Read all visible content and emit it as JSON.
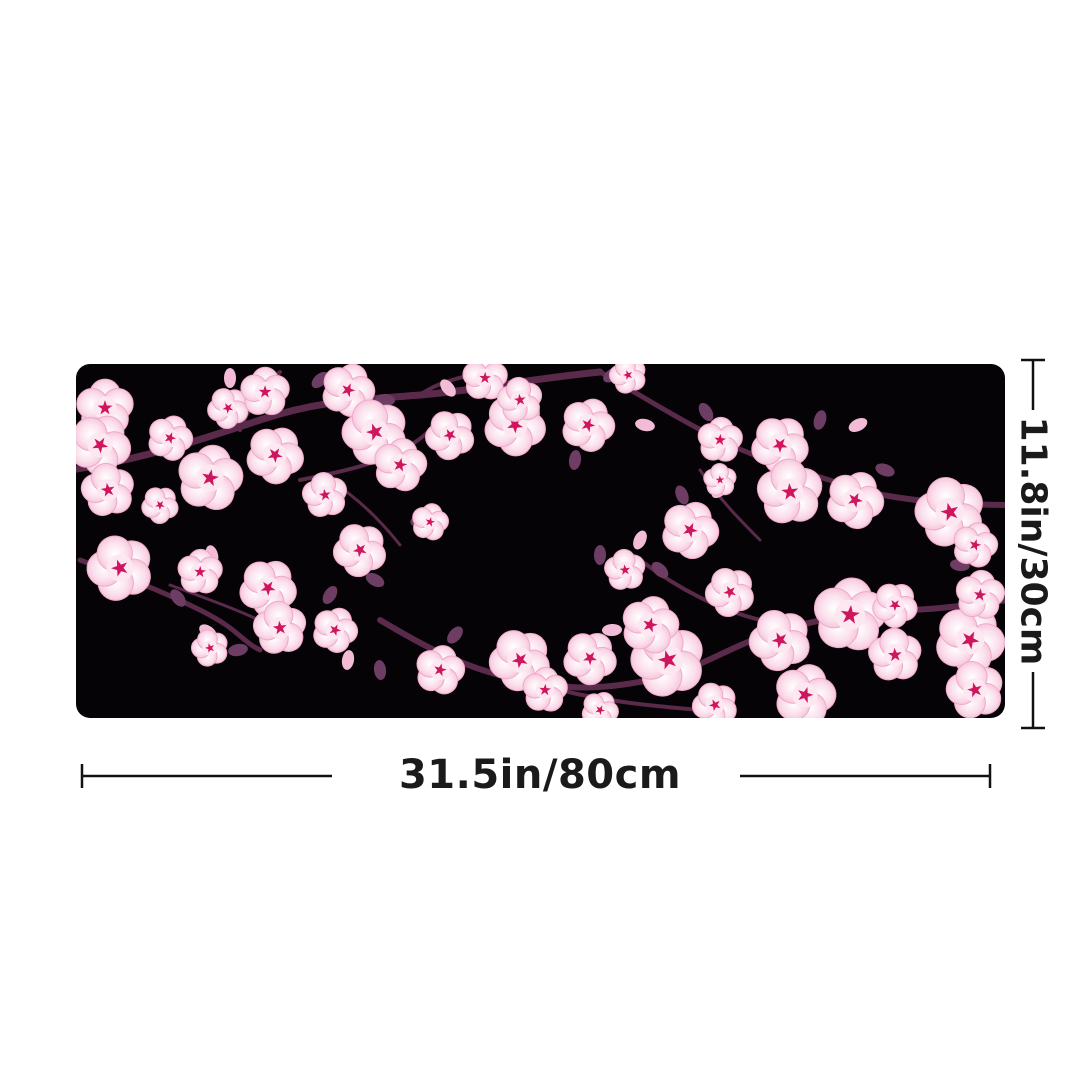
{
  "product": {
    "width_text": "31.5in/80cm",
    "height_text": "11.8in/30cm"
  },
  "colors": {
    "background": "#ffffff",
    "mat": "#050305",
    "branch": "#5a2a4a",
    "petal": "#f7c6de",
    "petal_light": "#fde8f2",
    "center": "#d0155f",
    "bud": "#6e3d63",
    "dimension_line": "#111111"
  },
  "icons": [
    "cherry-blossom-icon",
    "blossom-bud-icon"
  ]
}
